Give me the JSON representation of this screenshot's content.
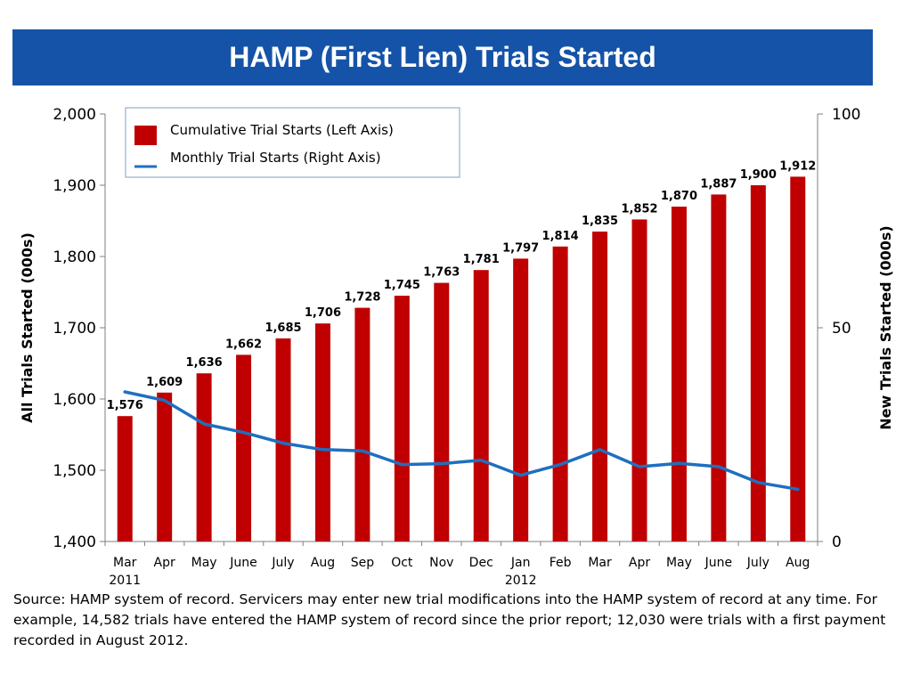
{
  "title": "HAMP (First Lien) Trials Started",
  "colors": {
    "title_bg": "#1553a8",
    "bar": "#c00000",
    "line": "#1f6fbf",
    "axis": "#7f7f7f"
  },
  "chart_data": {
    "type": "bar",
    "categories": [
      "Mar",
      "Apr",
      "May",
      "June",
      "July",
      "Aug",
      "Sep",
      "Oct",
      "Nov",
      "Dec",
      "Jan",
      "Feb",
      "Mar",
      "Apr",
      "May",
      "June",
      "July",
      "Aug"
    ],
    "year_labels": [
      {
        "category_index": 0,
        "label": "2011"
      },
      {
        "category_index": 10,
        "label": "2012"
      }
    ],
    "series": [
      {
        "name": "Cumulative Trial Starts (Left Axis)",
        "type": "bar",
        "axis": "left",
        "values": [
          1576,
          1609,
          1636,
          1662,
          1685,
          1706,
          1728,
          1745,
          1763,
          1781,
          1797,
          1814,
          1835,
          1852,
          1870,
          1887,
          1900,
          1912
        ],
        "labels": [
          "1,576",
          "1,609",
          "1,636",
          "1,662",
          "1,685",
          "1,706",
          "1,728",
          "1,745",
          "1,763",
          "1,781",
          "1,797",
          "1,814",
          "1,835",
          "1,852",
          "1,870",
          "1,887",
          "1,900",
          "1,912"
        ]
      },
      {
        "name": "Monthly Trial Starts (Right Axis)",
        "type": "line",
        "axis": "right",
        "values": [
          35,
          33,
          27.5,
          25.5,
          23,
          21.5,
          21.2,
          18,
          18.2,
          19,
          15.5,
          18,
          21.5,
          17.5,
          18.3,
          17.5,
          13.8,
          12.2
        ]
      }
    ],
    "ylabel": "All Trials Started (000s)",
    "y2label": "New Trials Started (000s)",
    "ylim": [
      1400,
      2000
    ],
    "yticks": [
      "1,400",
      "1,500",
      "1,600",
      "1,700",
      "1,800",
      "1,900",
      "2,000"
    ],
    "y2lim": [
      0,
      100
    ],
    "y2ticks": [
      "0",
      "50",
      "100"
    ],
    "legend_position": "top-left",
    "grid": false
  },
  "source": "Source: HAMP system of record. Servicers may enter new trial modifications into the HAMP system of record at any time. For example, 14,582 trials have entered the HAMP system of record since the prior report; 12,030 were trials with a first payment recorded in August 2012."
}
